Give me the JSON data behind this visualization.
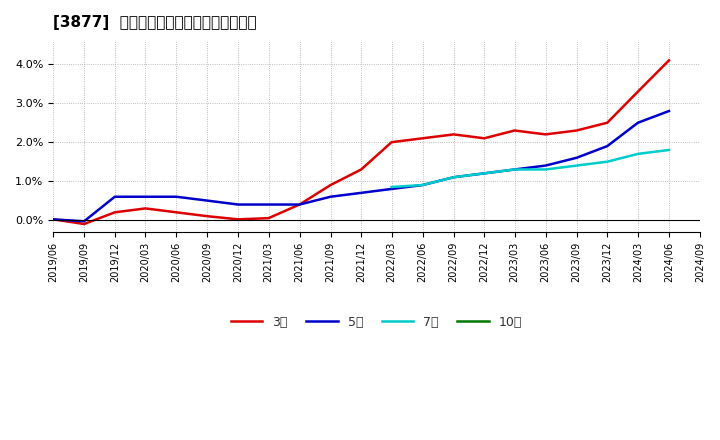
{
  "title": "[3877]  経常利益マージンの平均値の推移",
  "background_color": "#ffffff",
  "plot_bg_color": "#ffffff",
  "grid_color": "#aaaaaa",
  "ylim": [
    -0.003,
    0.046
  ],
  "yticks": [
    0.0,
    0.01,
    0.02,
    0.03,
    0.04
  ],
  "series": {
    "3y": {
      "label": "3年",
      "color": "#dd0000",
      "data": [
        [
          "2019-06",
          0.0002
        ],
        [
          "2019-09",
          -0.001
        ],
        [
          "2019-12",
          0.002
        ],
        [
          "2020-03",
          0.003
        ],
        [
          "2020-06",
          0.002
        ],
        [
          "2020-09",
          0.001
        ],
        [
          "2020-12",
          0.0002
        ],
        [
          "2021-03",
          0.0005
        ],
        [
          "2021-06",
          0.004
        ],
        [
          "2021-09",
          0.009
        ],
        [
          "2021-12",
          0.013
        ],
        [
          "2022-03",
          0.02
        ],
        [
          "2022-06",
          0.021
        ],
        [
          "2022-09",
          0.022
        ],
        [
          "2022-12",
          0.021
        ],
        [
          "2023-03",
          0.023
        ],
        [
          "2023-06",
          0.022
        ],
        [
          "2023-09",
          0.023
        ],
        [
          "2023-12",
          0.025
        ],
        [
          "2024-03",
          0.033
        ],
        [
          "2024-06",
          0.041
        ]
      ]
    },
    "5y": {
      "label": "5年",
      "color": "#0000cc",
      "data": [
        [
          "2019-06",
          0.0002
        ],
        [
          "2019-09",
          -0.0003
        ],
        [
          "2019-12",
          0.006
        ],
        [
          "2020-03",
          0.006
        ],
        [
          "2020-06",
          0.006
        ],
        [
          "2020-09",
          0.005
        ],
        [
          "2020-12",
          0.004
        ],
        [
          "2021-03",
          0.004
        ],
        [
          "2021-06",
          0.004
        ],
        [
          "2021-09",
          0.006
        ],
        [
          "2021-12",
          0.007
        ],
        [
          "2022-03",
          0.008
        ],
        [
          "2022-06",
          0.009
        ],
        [
          "2022-09",
          0.011
        ],
        [
          "2022-12",
          0.012
        ],
        [
          "2023-03",
          0.013
        ],
        [
          "2023-06",
          0.014
        ],
        [
          "2023-09",
          0.016
        ],
        [
          "2023-12",
          0.019
        ],
        [
          "2024-03",
          0.025
        ],
        [
          "2024-06",
          0.028
        ]
      ]
    },
    "7y": {
      "label": "7年",
      "color": "#00cccc",
      "data": [
        [
          "2022-03",
          0.0085
        ],
        [
          "2022-06",
          0.009
        ],
        [
          "2022-09",
          0.011
        ],
        [
          "2022-12",
          0.012
        ],
        [
          "2023-03",
          0.013
        ],
        [
          "2023-06",
          0.013
        ],
        [
          "2023-09",
          0.014
        ],
        [
          "2023-12",
          0.015
        ],
        [
          "2024-03",
          0.017
        ],
        [
          "2024-06",
          0.018
        ]
      ]
    },
    "10y": {
      "label": "10年",
      "color": "#007700",
      "data": []
    }
  },
  "xtick_labels": [
    "2019/06",
    "2019/09",
    "2019/12",
    "2020/03",
    "2020/06",
    "2020/09",
    "2020/12",
    "2021/03",
    "2021/06",
    "2021/09",
    "2021/12",
    "2022/03",
    "2022/06",
    "2022/09",
    "2022/12",
    "2023/03",
    "2023/06",
    "2023/09",
    "2023/12",
    "2024/03",
    "2024/06",
    "2024/09"
  ],
  "legend_entries": [
    "3年",
    "5年",
    "7年",
    "10年"
  ],
  "legend_colors": [
    "#dd0000",
    "#0000cc",
    "#00cccc",
    "#007700"
  ]
}
